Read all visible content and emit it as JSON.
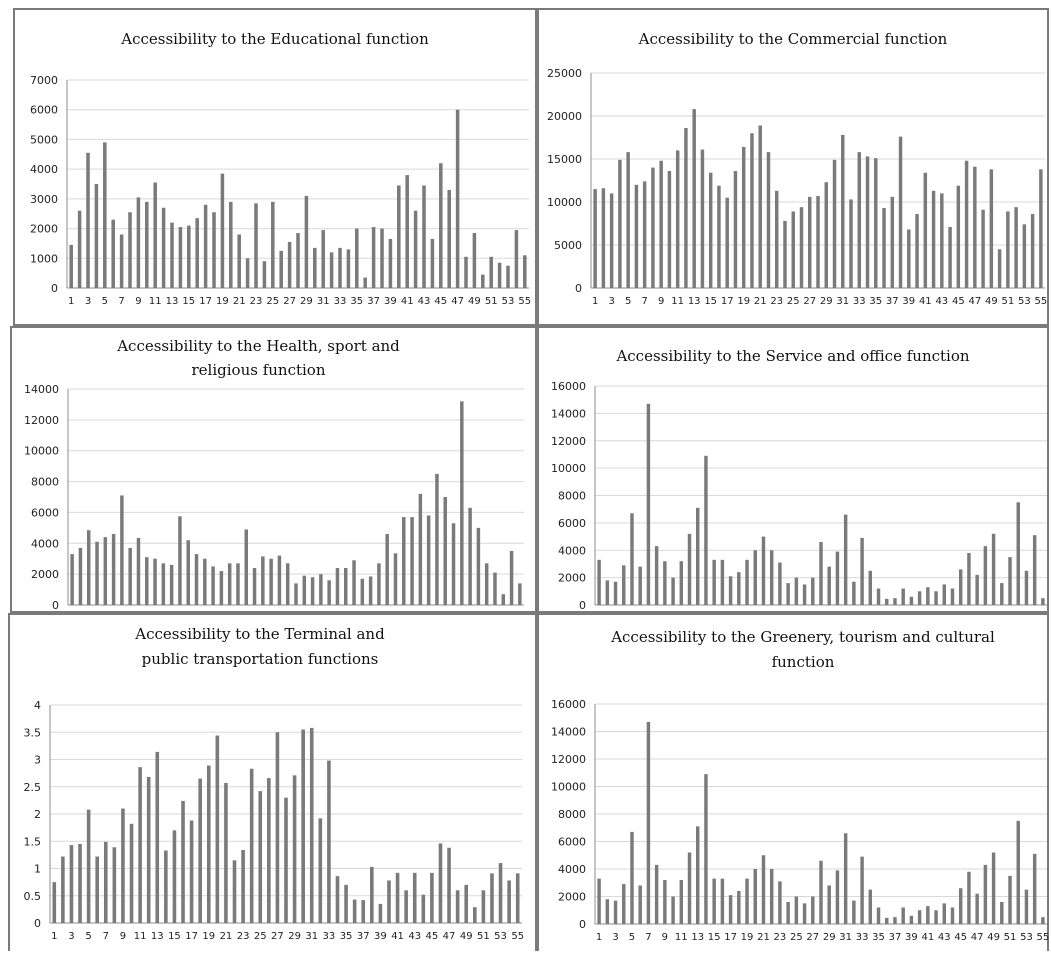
{
  "chart_data": [
    {
      "type": "bar",
      "title": "Accessibility to the Educational function",
      "x": [
        1,
        2,
        3,
        4,
        5,
        6,
        7,
        8,
        9,
        10,
        11,
        12,
        13,
        14,
        15,
        16,
        17,
        18,
        19,
        20,
        21,
        22,
        23,
        24,
        25,
        26,
        27,
        28,
        29,
        30,
        31,
        32,
        33,
        34,
        35,
        36,
        37,
        38,
        39,
        40,
        41,
        42,
        43,
        44,
        45,
        46,
        47,
        48,
        49,
        50,
        51,
        52,
        53,
        54,
        55
      ],
      "values": [
        1450,
        2600,
        4550,
        3500,
        4900,
        2300,
        1800,
        2550,
        3050,
        2900,
        3550,
        2700,
        2200,
        2050,
        2100,
        2350,
        2800,
        2550,
        3850,
        2900,
        1800,
        1000,
        2850,
        900,
        2900,
        1250,
        1550,
        1850,
        3100,
        1350,
        1950,
        1200,
        1350,
        1300,
        2000,
        350,
        2050,
        2000,
        1650,
        3450,
        3800,
        2600,
        3450,
        1650,
        4200,
        3300,
        6000,
        1050,
        1850,
        450,
        1050,
        850,
        750,
        1950,
        1100
      ],
      "ylim": [
        0,
        7000
      ],
      "yticks": [
        0,
        1000,
        2000,
        3000,
        4000,
        5000,
        6000,
        7000
      ],
      "xtick_labels": [
        "1",
        "3",
        "5",
        "7",
        "9",
        "11",
        "13",
        "15",
        "17",
        "19",
        "21",
        "23",
        "25",
        "27",
        "29",
        "31",
        "33",
        "35",
        "37",
        "39",
        "41",
        "43",
        "45",
        "47",
        "49",
        "51",
        "53",
        "55"
      ],
      "grid": true,
      "color": "#7a7a7a"
    },
    {
      "type": "bar",
      "title": "Accessibility to the Commercial function",
      "x": [
        1,
        2,
        3,
        4,
        5,
        6,
        7,
        8,
        9,
        10,
        11,
        12,
        13,
        14,
        15,
        16,
        17,
        18,
        19,
        20,
        21,
        22,
        23,
        24,
        25,
        26,
        27,
        28,
        29,
        30,
        31,
        32,
        33,
        34,
        35,
        36,
        37,
        38,
        39,
        40,
        41,
        42,
        43,
        44,
        45,
        46,
        47,
        48,
        49,
        50,
        51,
        52,
        53,
        54,
        55
      ],
      "values": [
        11500,
        11600,
        11000,
        14900,
        15800,
        12000,
        12400,
        14000,
        14800,
        13600,
        16000,
        18600,
        20800,
        16100,
        13400,
        11900,
        10500,
        13600,
        16400,
        18000,
        18900,
        15800,
        11300,
        7800,
        8900,
        9400,
        10600,
        10700,
        12300,
        14900,
        17800,
        10300,
        15800,
        15300,
        15100,
        9300,
        10600,
        17600,
        6800,
        8600,
        13400,
        11300,
        11000,
        7100,
        11900,
        14800,
        14100,
        9100,
        13800,
        4500,
        8900,
        9400,
        7400,
        8600,
        13800
      ],
      "ylim": [
        0,
        25000
      ],
      "yticks": [
        0,
        5000,
        10000,
        15000,
        20000,
        25000
      ],
      "xtick_labels": [
        "1",
        "3",
        "5",
        "7",
        "9",
        "11",
        "13",
        "15",
        "17",
        "19",
        "21",
        "23",
        "25",
        "27",
        "29",
        "31",
        "33",
        "35",
        "37",
        "39",
        "41",
        "43",
        "45",
        "47",
        "49",
        "51",
        "53",
        "55"
      ],
      "grid": true,
      "color": "#7a7a7a"
    },
    {
      "type": "bar",
      "title": "Accessibility to the Health, sport and religious function",
      "x": [
        1,
        2,
        3,
        4,
        5,
        6,
        7,
        8,
        9,
        10,
        11,
        12,
        13,
        14,
        15,
        16,
        17,
        18,
        19,
        20,
        21,
        22,
        23,
        24,
        25,
        26,
        27,
        28,
        29,
        30,
        31,
        32,
        33,
        34,
        35,
        36,
        37,
        38,
        39,
        40,
        41,
        42,
        43,
        44,
        45,
        46,
        47,
        48,
        49,
        50,
        51,
        52,
        53,
        54,
        55
      ],
      "values": [
        3300,
        3700,
        4850,
        4100,
        4400,
        4600,
        7100,
        3700,
        4350,
        3100,
        3000,
        2700,
        2600,
        5750,
        4200,
        3300,
        3000,
        2500,
        2200,
        2700,
        2700,
        4900,
        2400,
        3150,
        3000,
        3200,
        2700,
        1400,
        1900,
        1800,
        2000,
        1600,
        2400,
        2400,
        2900,
        1700,
        1850,
        2700,
        4600,
        3350,
        5700,
        5700,
        7200,
        5800,
        8500,
        7000,
        5300,
        13200,
        6300,
        5000,
        2700,
        2100,
        700,
        3500,
        1400
      ],
      "ylim": [
        0,
        14000
      ],
      "yticks": [
        0,
        2000,
        4000,
        6000,
        8000,
        10000,
        12000,
        14000
      ],
      "xtick_labels": [
        "1",
        "3",
        "5",
        "7",
        "9",
        "11",
        "13",
        "15",
        "17",
        "19",
        "21",
        "23",
        "25",
        "27",
        "29",
        "31",
        "33",
        "35",
        "37",
        "39",
        "41",
        "43",
        "45",
        "47",
        "49",
        "51",
        "53",
        "55"
      ],
      "grid": true,
      "color": "#7a7a7a"
    },
    {
      "type": "bar",
      "title": "Accessibility to the Service and office function",
      "x": [
        1,
        2,
        3,
        4,
        5,
        6,
        7,
        8,
        9,
        10,
        11,
        12,
        13,
        14,
        15,
        16,
        17,
        18,
        19,
        20,
        21,
        22,
        23,
        24,
        25,
        26,
        27,
        28,
        29,
        30,
        31,
        32,
        33,
        34,
        35,
        36,
        37,
        38,
        39,
        40,
        41,
        42,
        43,
        44,
        45,
        46,
        47,
        48,
        49,
        50,
        51,
        52,
        53,
        54,
        55
      ],
      "values": [
        3300,
        1800,
        1700,
        2900,
        6700,
        2800,
        14700,
        4300,
        3200,
        2000,
        3200,
        5200,
        7100,
        10900,
        3300,
        3300,
        2100,
        2400,
        3300,
        4000,
        5000,
        4000,
        3100,
        1600,
        2000,
        1500,
        2000,
        4600,
        2800,
        3900,
        6600,
        1700,
        4900,
        2500,
        1200,
        450,
        500,
        1200,
        600,
        1000,
        1300,
        1000,
        1500,
        1200,
        2600,
        3800,
        2200,
        4300,
        5200,
        1600,
        3500,
        7500,
        2500,
        5100,
        500
      ],
      "ylim": [
        0,
        16000
      ],
      "yticks": [
        0,
        2000,
        4000,
        6000,
        8000,
        10000,
        12000,
        14000,
        16000
      ],
      "xtick_labels": [
        "1",
        "3",
        "5",
        "7",
        "9",
        "11",
        "13",
        "15",
        "17",
        "19",
        "21",
        "23",
        "25",
        "27",
        "29",
        "31",
        "33",
        "35",
        "37",
        "39",
        "41",
        "43",
        "45",
        "47",
        "49",
        "51",
        "53",
        "55"
      ],
      "grid": true,
      "color": "#7a7a7a"
    },
    {
      "type": "bar",
      "title": "Accessibility to the Terminal and public transportation functions",
      "x": [
        1,
        2,
        3,
        4,
        5,
        6,
        7,
        8,
        9,
        10,
        11,
        12,
        13,
        14,
        15,
        16,
        17,
        18,
        19,
        20,
        21,
        22,
        23,
        24,
        25,
        26,
        27,
        28,
        29,
        30,
        31,
        32,
        33,
        34,
        35,
        36,
        37,
        38,
        39,
        40,
        41,
        42,
        43,
        44,
        45,
        46,
        47,
        48,
        49,
        50,
        51,
        52,
        53,
        54,
        55
      ],
      "values": [
        0.75,
        1.22,
        1.43,
        1.45,
        2.08,
        1.22,
        1.49,
        1.39,
        2.1,
        1.82,
        2.86,
        2.68,
        3.14,
        1.33,
        1.7,
        2.24,
        1.88,
        2.65,
        2.89,
        3.44,
        2.57,
        1.15,
        1.34,
        2.83,
        2.42,
        2.66,
        3.5,
        2.3,
        2.71,
        3.55,
        3.58,
        1.92,
        2.98,
        0.86,
        0.7,
        0.43,
        0.42,
        1.03,
        0.35,
        0.78,
        0.92,
        0.6,
        0.92,
        0.52,
        0.92,
        1.46,
        1.38,
        0.6,
        0.7,
        0.29,
        0.6,
        0.91,
        1.1,
        0.78,
        0.91
      ],
      "ylim": [
        0,
        4
      ],
      "yticks": [
        0,
        0.5,
        1,
        1.5,
        2,
        2.5,
        3,
        3.5,
        4
      ],
      "xtick_labels": [
        "1",
        "3",
        "5",
        "7",
        "9",
        "11",
        "13",
        "15",
        "17",
        "19",
        "21",
        "23",
        "25",
        "27",
        "29",
        "31",
        "33",
        "35",
        "37",
        "39",
        "41",
        "43",
        "45",
        "47",
        "49",
        "51",
        "53",
        "55"
      ],
      "grid": true,
      "color": "#7a7a7a"
    },
    {
      "type": "bar",
      "title": "Accessibility to the Greenery, tourism and cultural function",
      "x": [
        1,
        2,
        3,
        4,
        5,
        6,
        7,
        8,
        9,
        10,
        11,
        12,
        13,
        14,
        15,
        16,
        17,
        18,
        19,
        20,
        21,
        22,
        23,
        24,
        25,
        26,
        27,
        28,
        29,
        30,
        31,
        32,
        33,
        34,
        35,
        36,
        37,
        38,
        39,
        40,
        41,
        42,
        43,
        44,
        45,
        46,
        47,
        48,
        49,
        50,
        51,
        52,
        53,
        54,
        55
      ],
      "values": [
        3300,
        1800,
        1700,
        2900,
        6700,
        2800,
        14700,
        4300,
        3200,
        2000,
        3200,
        5200,
        7100,
        10900,
        3300,
        3300,
        2100,
        2400,
        3300,
        4000,
        5000,
        4000,
        3100,
        1600,
        2000,
        1500,
        2000,
        4600,
        2800,
        3900,
        6600,
        1700,
        4900,
        2500,
        1200,
        450,
        500,
        1200,
        600,
        1000,
        1300,
        1000,
        1500,
        1200,
        2600,
        3800,
        2200,
        4300,
        5200,
        1600,
        3500,
        7500,
        2500,
        5100,
        500
      ],
      "ylim": [
        0,
        16000
      ],
      "yticks": [
        0,
        2000,
        4000,
        6000,
        8000,
        10000,
        12000,
        14000,
        16000
      ],
      "xtick_labels": [
        "1",
        "3",
        "5",
        "7",
        "9",
        "11",
        "13",
        "15",
        "17",
        "19",
        "21",
        "23",
        "25",
        "27",
        "29",
        "31",
        "33",
        "35",
        "37",
        "39",
        "41",
        "43",
        "45",
        "47",
        "49",
        "51",
        "53",
        "55"
      ],
      "grid": true,
      "color": "#7a7a7a"
    }
  ]
}
